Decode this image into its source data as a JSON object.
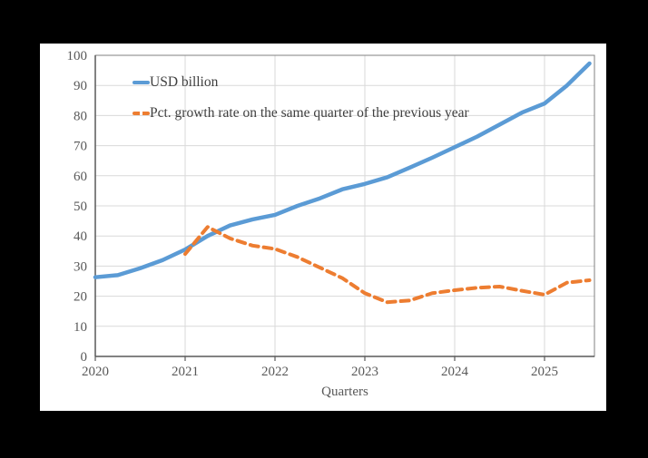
{
  "colors": {
    "background": "#000000",
    "canvas": "#FFFFFF",
    "gridline": "#D9D9D9",
    "frame_border": "#808080",
    "axis": "#595959",
    "tick_label": "#595959",
    "legend_text": "#3F3F3F"
  },
  "chart_data": {
    "type": "line",
    "title": "",
    "xlabel": "Quarters",
    "ylabel": "",
    "ylim": [
      0,
      100
    ],
    "y_ticks": [
      0,
      10,
      20,
      30,
      40,
      50,
      60,
      70,
      80,
      90,
      100
    ],
    "x_ticks": [
      "2020",
      "2021",
      "2022",
      "2023",
      "2024",
      "2025"
    ],
    "frequency": "quarterly",
    "grid": true,
    "legend_position": "top-left-inside",
    "series": [
      {
        "name": "USD billion",
        "color": "#5B9BD5",
        "line_style": "solid",
        "start_period": "2020 Q1",
        "start_quarter_index": 0,
        "values": [
          26.3,
          27.0,
          29.3,
          32.0,
          35.5,
          40.0,
          43.5,
          45.5,
          47.0,
          50.0,
          52.5,
          55.5,
          57.3,
          59.5,
          62.7,
          66.0,
          69.5,
          73.0,
          77.0,
          81.0,
          84.0,
          90.0,
          97.3
        ]
      },
      {
        "name": "Pct. growth rate on the same quarter of the previous year",
        "color": "#ED7D31",
        "line_style": "dashed",
        "start_period": "2021 Q1",
        "start_quarter_index": 4,
        "values": [
          34.0,
          43.0,
          39.2,
          36.8,
          35.7,
          33.0,
          29.5,
          26.0,
          21.0,
          18.0,
          18.6,
          21.0,
          22.0,
          22.8,
          23.2,
          21.8,
          20.5,
          24.5,
          25.3
        ]
      }
    ]
  }
}
